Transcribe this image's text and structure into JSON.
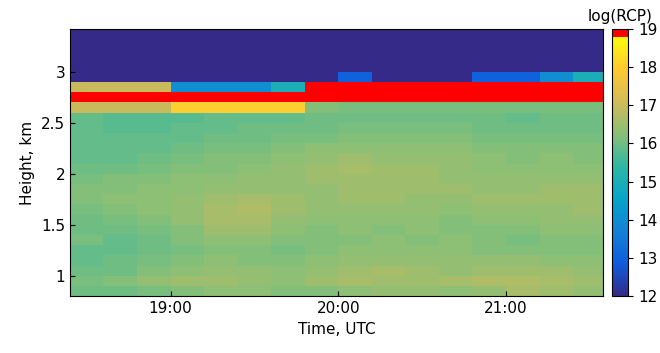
{
  "chart_data": {
    "type": "heatmap",
    "xlabel": "Time, UTC",
    "ylabel": "Height, km",
    "xlim": [
      18.4,
      21.58
    ],
    "xticks": [
      {
        "value": 19,
        "label": "19:00"
      },
      {
        "value": 20,
        "label": "20:00"
      },
      {
        "value": 21,
        "label": "21:00"
      }
    ],
    "ylim": [
      0.8,
      3.42
    ],
    "yticks": [
      1,
      1.5,
      2,
      2.5,
      3
    ],
    "x_edges": [
      18.4,
      18.6,
      18.8,
      19.0,
      19.2,
      19.4,
      19.6,
      19.8,
      20.0,
      20.2,
      20.4,
      20.6,
      20.8,
      21.0,
      21.2,
      21.4,
      21.6
    ],
    "y_edges": [
      0.8,
      0.9,
      1.0,
      1.1,
      1.2,
      1.3,
      1.4,
      1.5,
      1.6,
      1.7,
      1.8,
      1.9,
      2.0,
      2.1,
      2.2,
      2.3,
      2.4,
      2.5,
      2.6,
      2.7,
      2.8,
      2.9,
      3.0,
      3.1,
      3.2,
      3.3,
      3.4,
      3.5
    ],
    "cells": [
      [
        16.0,
        16.0,
        16.1,
        16.2,
        16.3,
        16.3,
        16.2,
        16.2,
        16.3,
        16.4,
        16.4,
        16.3,
        16.4,
        16.6,
        16.5,
        16.4
      ],
      [
        16.1,
        16.2,
        16.4,
        16.5,
        16.5,
        16.4,
        16.3,
        16.5,
        16.6,
        16.5,
        16.5,
        16.6,
        16.7,
        16.7,
        16.6,
        16.5
      ],
      [
        16.0,
        16.0,
        16.2,
        16.3,
        16.4,
        16.4,
        16.3,
        16.4,
        16.5,
        16.6,
        16.5,
        16.4,
        16.5,
        16.5,
        16.5,
        16.4
      ],
      [
        15.9,
        16.0,
        16.1,
        16.2,
        16.3,
        16.2,
        16.2,
        16.3,
        16.4,
        16.4,
        16.4,
        16.4,
        16.4,
        16.4,
        16.3,
        16.3
      ],
      [
        15.9,
        15.9,
        16.0,
        16.1,
        16.2,
        16.2,
        16.1,
        16.2,
        16.3,
        16.3,
        16.3,
        16.3,
        16.2,
        16.2,
        16.2,
        16.2
      ],
      [
        16.1,
        15.9,
        16.0,
        16.2,
        16.3,
        16.3,
        16.2,
        16.2,
        16.2,
        16.3,
        16.2,
        16.3,
        16.2,
        16.1,
        16.2,
        16.2
      ],
      [
        16.0,
        16.0,
        16.1,
        16.2,
        16.5,
        16.5,
        16.3,
        16.2,
        16.3,
        16.2,
        16.3,
        16.2,
        16.2,
        16.2,
        16.3,
        16.3
      ],
      [
        16.0,
        16.1,
        16.2,
        16.4,
        16.6,
        16.6,
        16.4,
        16.3,
        16.3,
        16.3,
        16.3,
        16.2,
        16.3,
        16.3,
        16.4,
        16.4
      ],
      [
        16.1,
        16.2,
        16.3,
        16.4,
        16.6,
        16.7,
        16.5,
        16.4,
        16.4,
        16.4,
        16.4,
        16.3,
        16.4,
        16.4,
        16.4,
        16.5
      ],
      [
        16.2,
        16.3,
        16.3,
        16.4,
        16.5,
        16.6,
        16.5,
        16.4,
        16.5,
        16.5,
        16.4,
        16.4,
        16.5,
        16.5,
        16.5,
        16.5
      ],
      [
        16.2,
        16.2,
        16.3,
        16.3,
        16.4,
        16.4,
        16.4,
        16.4,
        16.5,
        16.5,
        16.5,
        16.5,
        16.4,
        16.4,
        16.5,
        16.5
      ],
      [
        16.1,
        16.2,
        16.2,
        16.3,
        16.3,
        16.4,
        16.4,
        16.5,
        16.5,
        16.5,
        16.5,
        16.4,
        16.4,
        16.4,
        16.4,
        16.4
      ],
      [
        16.0,
        16.0,
        16.1,
        16.2,
        16.2,
        16.3,
        16.4,
        16.5,
        16.6,
        16.5,
        16.5,
        16.4,
        16.3,
        16.3,
        16.3,
        16.3
      ],
      [
        15.9,
        15.9,
        16.0,
        16.1,
        16.2,
        16.2,
        16.3,
        16.4,
        16.5,
        16.4,
        16.4,
        16.4,
        16.3,
        16.2,
        16.3,
        16.2
      ],
      [
        15.9,
        15.9,
        15.9,
        16.0,
        16.1,
        16.1,
        16.2,
        16.3,
        16.3,
        16.3,
        16.3,
        16.3,
        16.2,
        16.2,
        16.2,
        16.2
      ],
      [
        15.9,
        15.9,
        15.9,
        15.9,
        16.0,
        16.0,
        16.1,
        16.1,
        16.2,
        16.2,
        16.2,
        16.2,
        16.1,
        16.1,
        16.1,
        16.1
      ],
      [
        15.9,
        15.8,
        15.8,
        15.9,
        15.9,
        16.0,
        16.0,
        16.0,
        16.1,
        16.1,
        16.1,
        16.1,
        16.0,
        16.0,
        16.0,
        16.0
      ],
      [
        15.9,
        15.8,
        15.8,
        15.8,
        15.9,
        15.9,
        15.9,
        16.0,
        16.0,
        16.0,
        16.0,
        16.0,
        16.0,
        15.9,
        16.0,
        16.0
      ],
      [
        17,
        17,
        17,
        18,
        18,
        18,
        18,
        16.2,
        16.1,
        16.1,
        16.1,
        16.1,
        16.1,
        16.1,
        16.1,
        16.1
      ],
      [
        19,
        19,
        19,
        19,
        19,
        19,
        19,
        19,
        19,
        19,
        19,
        19,
        19,
        19,
        19,
        19
      ],
      [
        17,
        17,
        17,
        14,
        14,
        14,
        15,
        19,
        19,
        19,
        19,
        19,
        19,
        19,
        19,
        19
      ],
      [
        12,
        12,
        12,
        12,
        12,
        12,
        12,
        12,
        13,
        12,
        12,
        12,
        13,
        13,
        14,
        15
      ],
      [
        12,
        12,
        12,
        12,
        12,
        12,
        12,
        12,
        12,
        12,
        12,
        12,
        12,
        12,
        12,
        12
      ],
      [
        12,
        12,
        12,
        12,
        12,
        12,
        12,
        12,
        12,
        12,
        12,
        12,
        12,
        12,
        12,
        12
      ],
      [
        12,
        12,
        12,
        12,
        12,
        12,
        12,
        12,
        12,
        12,
        12,
        12,
        12,
        12,
        12,
        12
      ],
      [
        12,
        12,
        12,
        12,
        12,
        12,
        12,
        12,
        12,
        12,
        12,
        12,
        12,
        12,
        12,
        12
      ],
      [
        12,
        12,
        12,
        12,
        12,
        12,
        12,
        12,
        12,
        12,
        12,
        12,
        12,
        12,
        12,
        12
      ]
    ],
    "colorbar": {
      "label": "log(RCP)",
      "range": [
        12,
        19
      ],
      "ticks": [
        12,
        13,
        14,
        15,
        16,
        17,
        18,
        19
      ]
    }
  }
}
